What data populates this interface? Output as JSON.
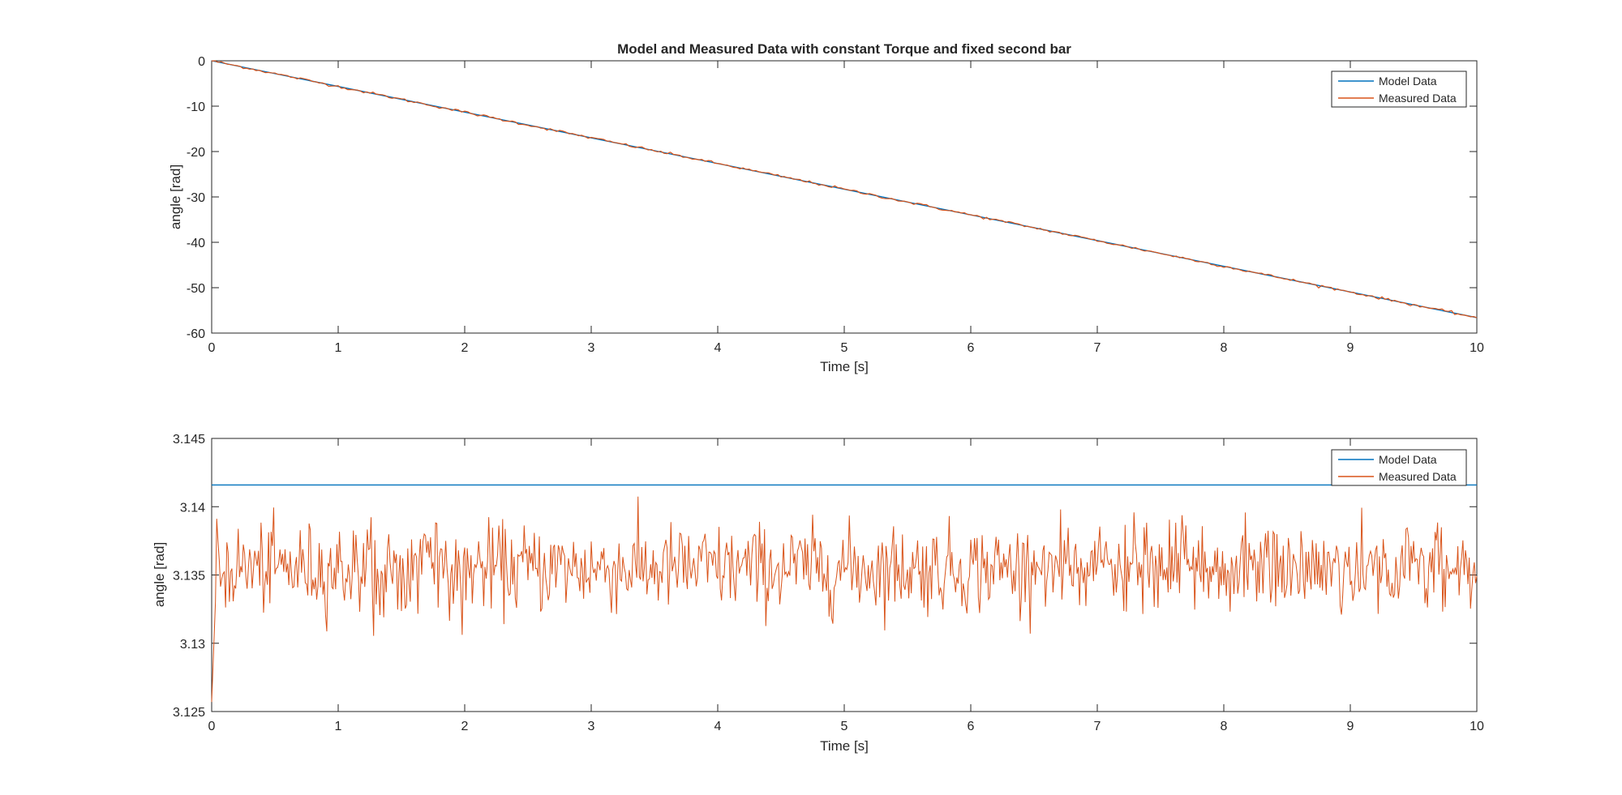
{
  "chart_data": [
    {
      "type": "line",
      "title": "Model and Measured Data with constant Torque and fixed second bar",
      "xlabel": "Time [s]",
      "ylabel": "angle [rad]",
      "xlim": [
        0,
        10
      ],
      "ylim": [
        -60,
        0
      ],
      "x_ticks": [
        "0",
        "1",
        "2",
        "3",
        "4",
        "5",
        "6",
        "7",
        "8",
        "9",
        "10"
      ],
      "y_ticks": [
        "0",
        "-10",
        "-20",
        "-30",
        "-40",
        "-50",
        "-60"
      ],
      "legend_position": "top-right",
      "grid": false,
      "series": [
        {
          "name": "Model Data",
          "color": "#0072BD",
          "x": [
            0,
            10
          ],
          "y": [
            0,
            -56.6
          ]
        },
        {
          "name": "Measured Data",
          "color": "#D95319",
          "x": [
            0,
            10
          ],
          "y": [
            0,
            -56.6
          ],
          "noise_amplitude": 0.15
        }
      ]
    },
    {
      "type": "line",
      "title": "",
      "xlabel": "Time [s]",
      "ylabel": "angle [rad]",
      "xlim": [
        0,
        10
      ],
      "ylim": [
        3.125,
        3.145
      ],
      "x_ticks": [
        "0",
        "1",
        "2",
        "3",
        "4",
        "5",
        "6",
        "7",
        "8",
        "9",
        "10"
      ],
      "y_ticks": [
        "3.145",
        "3.14",
        "3.135",
        "3.13",
        "3.125"
      ],
      "legend_position": "top-right",
      "grid": false,
      "series": [
        {
          "name": "Model Data",
          "color": "#0072BD",
          "x": [
            0,
            10
          ],
          "y": [
            3.14159,
            3.14159
          ]
        },
        {
          "name": "Measured Data",
          "color": "#D95319",
          "start_value": 3.1257,
          "mean": 3.1355,
          "std": 0.0016,
          "min": 3.1305,
          "max": 3.1413,
          "num_points": 1000
        }
      ]
    }
  ]
}
